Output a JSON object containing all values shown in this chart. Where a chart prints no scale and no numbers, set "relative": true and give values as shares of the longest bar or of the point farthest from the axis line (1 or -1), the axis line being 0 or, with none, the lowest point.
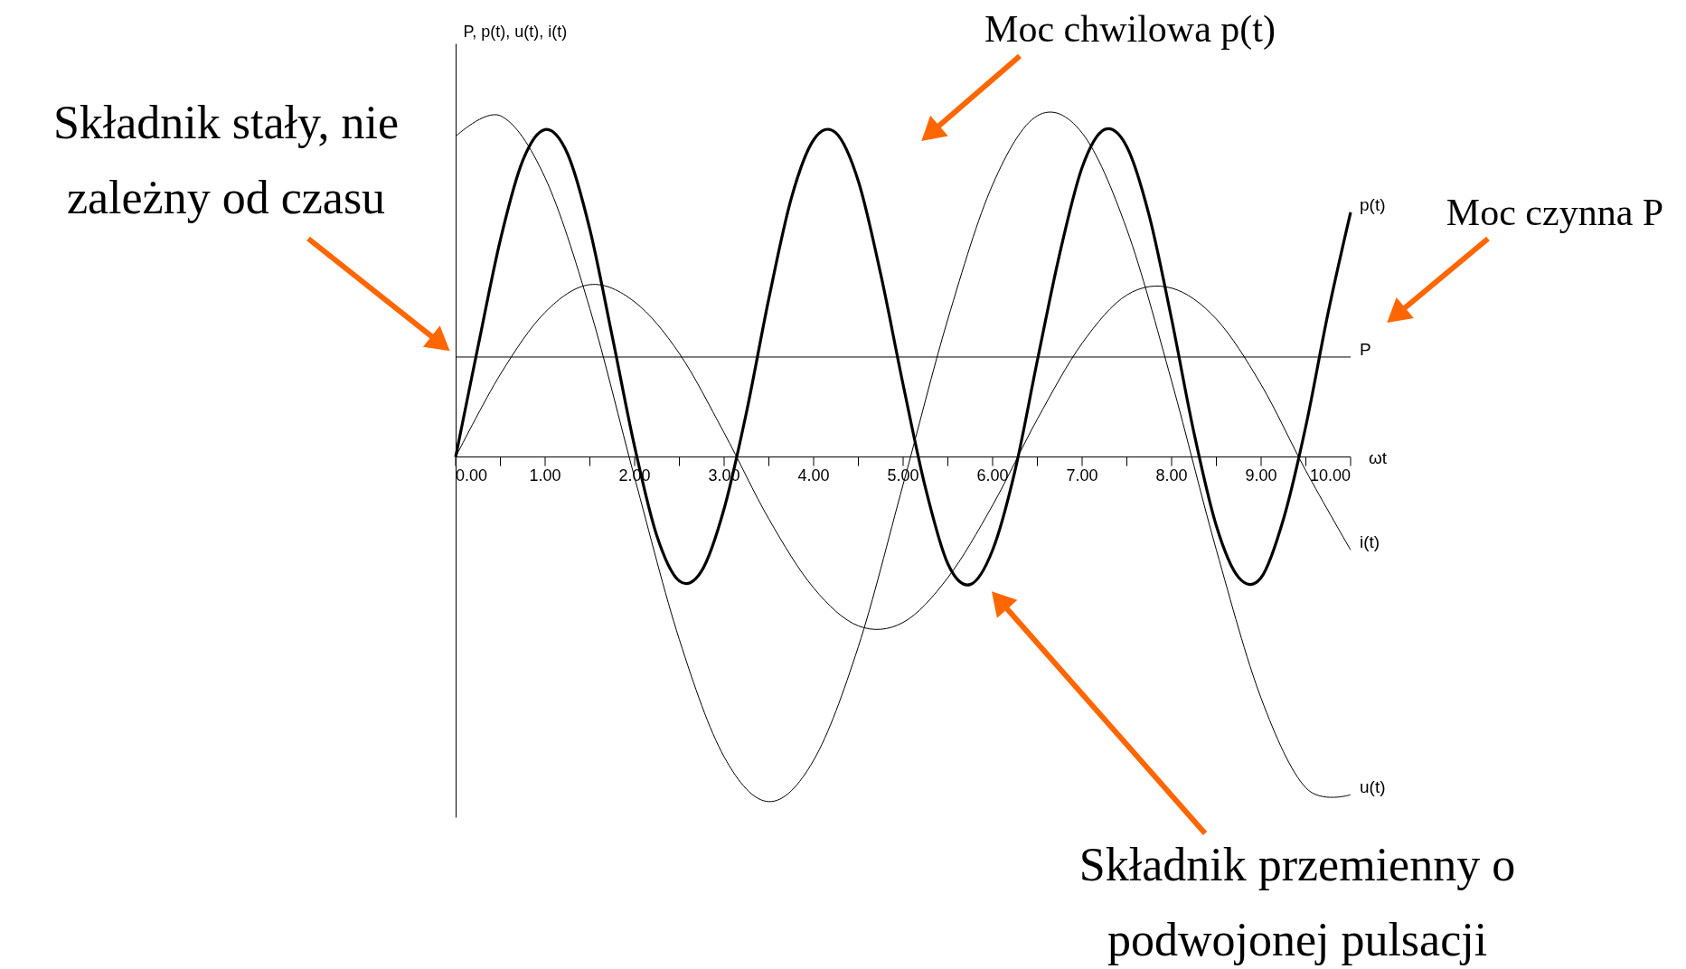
{
  "chart_data": {
    "type": "line",
    "relative": true,
    "xlabel": "ωt",
    "ylabel": "P, p(t), u(t), i(t)",
    "xlim": [
      0,
      10
    ],
    "xticks": [
      {
        "value": 0,
        "label": "0.00"
      },
      {
        "value": 0.5,
        "label": null
      },
      {
        "value": 1,
        "label": "1.00"
      },
      {
        "value": 1.5,
        "label": null
      },
      {
        "value": 2,
        "label": "2.00"
      },
      {
        "value": 2.5,
        "label": null
      },
      {
        "value": 3,
        "label": "3.00"
      },
      {
        "value": 3.5,
        "label": null
      },
      {
        "value": 4,
        "label": "4.00"
      },
      {
        "value": 4.5,
        "label": null
      },
      {
        "value": 5,
        "label": "5.00"
      },
      {
        "value": 5.5,
        "label": null
      },
      {
        "value": 6,
        "label": "6.00"
      },
      {
        "value": 6.5,
        "label": null
      },
      {
        "value": 7,
        "label": "7.00"
      },
      {
        "value": 7.5,
        "label": null
      },
      {
        "value": 8,
        "label": "8.00"
      },
      {
        "value": 8.5,
        "label": null
      },
      {
        "value": 9,
        "label": "9.00"
      },
      {
        "value": 9.5,
        "label": null
      },
      {
        "value": 10,
        "label": "10.00"
      }
    ],
    "grid": false,
    "legend": false,
    "marker": "none",
    "line_style": "solid",
    "tick_labels": "x",
    "series": [
      {
        "name": "u(t)",
        "color": "#000000",
        "x": [
          0,
          0.5,
          1,
          1.5,
          2,
          2.5,
          3,
          3.5,
          4,
          4.5,
          5,
          5.5,
          6,
          6.5,
          7,
          7.5,
          8,
          8.5,
          9,
          9.5,
          10
        ],
        "values": [
          0.93,
          0.99,
          0.81,
          0.43,
          -0.06,
          -0.53,
          -0.87,
          -1.0,
          -0.88,
          -0.55,
          -0.08,
          0.4,
          0.79,
          0.99,
          0.94,
          0.66,
          0.22,
          -0.27,
          -0.7,
          -0.96,
          -0.98
        ]
      },
      {
        "name": "i(t)",
        "color": "#000000",
        "x": [
          0,
          0.5,
          1,
          1.5,
          2,
          2.5,
          3,
          3.5,
          4,
          4.5,
          5,
          5.5,
          6,
          6.5,
          7,
          7.5,
          8,
          8.5,
          9,
          9.5,
          10
        ],
        "values": [
          0,
          0.24,
          0.42,
          0.5,
          0.45,
          0.3,
          0.07,
          -0.18,
          -0.38,
          -0.49,
          -0.48,
          -0.35,
          -0.14,
          0.11,
          0.33,
          0.47,
          0.49,
          0.4,
          0.21,
          -0.04,
          -0.27
        ]
      },
      {
        "name": "p(t)",
        "color": "#000000",
        "x": [
          0,
          0.25,
          0.5,
          0.75,
          1,
          1.25,
          1.5,
          1.75,
          2,
          2.25,
          2.5,
          2.75,
          3,
          3.25,
          3.5,
          3.75,
          4,
          4.25,
          4.5,
          4.75,
          5,
          5.25,
          5.5,
          5.75,
          6,
          6.25,
          6.5,
          6.75,
          7,
          7.25,
          7.5,
          7.75,
          8,
          8.25,
          8.5,
          8.75,
          9,
          9.25,
          9.5,
          9.75,
          10
        ],
        "values": [
          0,
          0.32,
          0.63,
          0.86,
          0.95,
          0.88,
          0.66,
          0.35,
          0.03,
          -0.23,
          -0.36,
          -0.33,
          -0.15,
          0.13,
          0.46,
          0.75,
          0.92,
          0.94,
          0.8,
          0.53,
          0.21,
          -0.09,
          -0.31,
          -0.37,
          -0.27,
          -0.04,
          0.28,
          0.59,
          0.84,
          0.95,
          0.9,
          0.7,
          0.4,
          0.07,
          -0.2,
          -0.35,
          -0.35,
          -0.18,
          0.09,
          0.42,
          0.71
        ]
      },
      {
        "name": "P",
        "color": "#000000",
        "x": [
          0,
          10
        ],
        "values": [
          0.29,
          0.29
        ]
      }
    ],
    "annotations": [
      "Moc chwilowa p(t)",
      "Moc czynna P",
      "Składnik stały, nie\nzależny od czasu",
      "Składnik przemienny o\npodwojonej pulsacji"
    ]
  }
}
